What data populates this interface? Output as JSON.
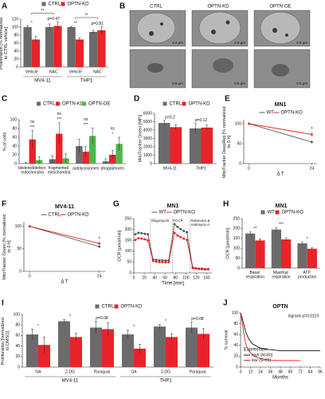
{
  "chart_data": [
    {
      "panel": "A",
      "type": "bar",
      "ylabel": "Proliferation [% normalized to CTRL vehicle]",
      "categories": [
        "Vehicle",
        "NAC",
        "Vehicle",
        "NAC"
      ],
      "groups": [
        "MV4-11",
        "THP1"
      ],
      "series": [
        {
          "name": "CTRL",
          "color": "#6b6b6b",
          "values": [
            100,
            100,
            100,
            88
          ],
          "errors": [
            3,
            8,
            2,
            4
          ]
        },
        {
          "name": "OPTN-KD",
          "color": "#e8242a",
          "values": [
            69,
            103,
            69,
            92
          ],
          "errors": [
            8,
            10,
            4,
            9
          ]
        }
      ],
      "ylim": [
        0,
        120
      ],
      "yticks": [
        0,
        20,
        40,
        60,
        80,
        100,
        120
      ],
      "sig": [
        "*",
        "p=0.47",
        "**",
        "p=0.81"
      ],
      "brackets": [
        {
          "label": "**",
          "from": 0,
          "to": 1
        },
        {
          "label": "**",
          "from": 2,
          "to": 3
        }
      ]
    },
    {
      "panel": "C",
      "type": "bar",
      "ylabel": "% of cells",
      "categories": [
        "blistered/defect mitochondria",
        "fragmented mitochondria",
        "autolysosomes",
        "phagophores"
      ],
      "series": [
        {
          "name": "CTRL",
          "color": "#6b6b6b",
          "values": [
            1,
            10,
            40,
            5
          ],
          "errors": [
            2,
            8,
            15,
            6
          ]
        },
        {
          "name": "OPTN-KD",
          "color": "#e8242a",
          "values": [
            55,
            68,
            27,
            20
          ],
          "errors": [
            20,
            25,
            12,
            10
          ]
        },
        {
          "name": "OPTN-OE",
          "color": "#4cb84c",
          "values": [
            8,
            12,
            63,
            45
          ],
          "errors": [
            8,
            10,
            18,
            15
          ]
        }
      ],
      "ylim": [
        0,
        100
      ],
      "yticks": [
        0,
        20,
        40,
        60,
        80,
        100
      ],
      "sig": [
        [
          "ns",
          "***"
        ],
        [
          "ns",
          "***"
        ],
        [
          "ns",
          "***"
        ],
        [
          "ns",
          "*"
        ]
      ]
    },
    {
      "panel": "D",
      "type": "bar",
      "ylabel": "MitoTracker Green [MFI]",
      "categories": [
        "MV4-11",
        "THP1"
      ],
      "series": [
        {
          "name": "CTRL",
          "color": "#6b6b6b",
          "values": [
            4850,
            4200
          ],
          "errors": [
            300,
            600
          ]
        },
        {
          "name": "OPTN-KD",
          "color": "#e8242a",
          "values": [
            4350,
            4300
          ],
          "errors": [
            300,
            300
          ]
        }
      ],
      "ylim": [
        0,
        6000
      ],
      "yticks": [
        0,
        1000,
        2000,
        3000,
        4000,
        5000,
        6000
      ],
      "sig": [
        "p=0.2",
        "p=0.12"
      ]
    },
    {
      "panel": "E",
      "type": "line",
      "title": "MN1",
      "ylabel": "MitoTracker DeepRed [% normalized to 0 h]",
      "xlabel": "Δ T",
      "x": [
        0,
        24
      ],
      "xlim": [
        -2,
        26
      ],
      "xticks": [
        0,
        24
      ],
      "ylim": [
        0,
        110
      ],
      "yticks": [
        0,
        50,
        100
      ],
      "series": [
        {
          "name": "WT",
          "color": "#555555",
          "values": [
            100,
            54
          ],
          "errors": [
            0,
            4
          ]
        },
        {
          "name": "OPTN-KO",
          "color": "#e8242a",
          "values": [
            100,
            73
          ],
          "errors": [
            0,
            5
          ]
        }
      ],
      "note": "*"
    },
    {
      "panel": "F",
      "type": "line",
      "title": "MV4-11",
      "ylabel": "MitoTracker Green [% normalized to 0 h]",
      "xlabel": "Δ T",
      "x": [
        0,
        24
      ],
      "xlim": [
        -2,
        26
      ],
      "xticks": [
        0,
        24
      ],
      "ylim": [
        0,
        110
      ],
      "yticks": [
        0,
        50,
        100
      ],
      "series": [
        {
          "name": "CTRL",
          "color": "#555555",
          "values": [
            100,
            55
          ],
          "errors": [
            0,
            3
          ]
        },
        {
          "name": "OPTN-KD",
          "color": "#e8242a",
          "values": [
            100,
            62
          ],
          "errors": [
            0,
            3
          ]
        }
      ],
      "note": "*"
    },
    {
      "panel": "G",
      "type": "line",
      "title": "MN1",
      "ylabel": "OCR [pmol/min]",
      "xlabel": "Time [min]",
      "x": [
        3,
        9,
        15,
        21,
        27,
        37,
        43,
        49,
        55,
        61,
        67,
        78,
        84,
        90,
        96,
        102,
        113,
        119,
        125,
        131,
        137,
        143
      ],
      "xlim": [
        0,
        150
      ],
      "xticks": [
        0,
        20,
        40,
        60,
        80,
        100,
        120,
        140
      ],
      "ylim": [
        0,
        250
      ],
      "yticks": [
        0,
        50,
        100,
        150,
        200,
        250
      ],
      "series": [
        {
          "name": "WT",
          "color": "#555555",
          "values": [
            178,
            185,
            183,
            180,
            178,
            62,
            60,
            58,
            58,
            57,
            57,
            225,
            212,
            202,
            193,
            188,
            25,
            22,
            20,
            20,
            18,
            18
          ]
        },
        {
          "name": "OPTN-KO",
          "color": "#e8242a",
          "values": [
            152,
            160,
            158,
            155,
            150,
            55,
            52,
            50,
            50,
            49,
            49,
            185,
            172,
            165,
            158,
            152,
            22,
            20,
            18,
            17,
            16,
            16
          ]
        }
      ],
      "events": [
        {
          "x": 32,
          "label": "Oligomycin"
        },
        {
          "x": 74,
          "label": "FCCP"
        },
        {
          "x": 108,
          "label": "Rotenone & Antimycin A"
        }
      ]
    },
    {
      "panel": "H",
      "type": "bar",
      "title": "MN1",
      "ylabel": "OCR [pmol/min]",
      "categories": [
        "Basal respiration",
        "Maximal respiration",
        "ATP production"
      ],
      "series": [
        {
          "name": "WT",
          "color": "#6b6b6b",
          "values": [
            175,
            195,
            125
          ],
          "errors": [
            8,
            10,
            5
          ]
        },
        {
          "name": "OPTN-KO",
          "color": "#e8242a",
          "values": [
            140,
            145,
            98
          ],
          "errors": [
            8,
            8,
            6
          ]
        }
      ],
      "ylim": [
        0,
        250
      ],
      "yticks": [
        0,
        50,
        100,
        150,
        200,
        250
      ],
      "sig": [
        "**",
        "***",
        "*"
      ]
    },
    {
      "panel": "I",
      "type": "bar",
      "ylabel": "Proliferation [normalized to DMSO]",
      "categories": [
        "OA",
        "2-DG",
        "Paraquat",
        "OA",
        "2-DG",
        "Paraquat"
      ],
      "groups": [
        "MV4-11",
        "THP1"
      ],
      "series": [
        {
          "name": "CTRL",
          "color": "#6b6b6b",
          "values": [
            62,
            87,
            75,
            62,
            77,
            75
          ],
          "errors": [
            10,
            3,
            12,
            8,
            4,
            10
          ]
        },
        {
          "name": "OPTN-KD",
          "color": "#e8242a",
          "values": [
            42,
            57,
            72,
            35,
            57,
            63
          ],
          "errors": [
            15,
            7,
            12,
            8,
            6,
            10
          ]
        }
      ],
      "ylim": [
        0,
        100
      ],
      "yticks": [
        0,
        20,
        40,
        60,
        80,
        100
      ],
      "sig": [
        "*",
        "*",
        "p=0.08",
        "*",
        "*",
        "p=0.08"
      ]
    },
    {
      "panel": "J",
      "type": "line",
      "title": "OPTN",
      "note": "logrank p=0.0119",
      "ylabel": "% survival",
      "xlabel": "Months",
      "x": [
        0,
        1,
        2,
        3,
        4,
        5,
        6,
        8,
        10,
        12,
        15,
        18,
        21,
        24,
        30,
        36,
        48,
        60,
        72,
        84,
        96
      ],
      "xlim": [
        0,
        96
      ],
      "xticks": [
        0,
        12,
        24,
        36,
        48,
        60,
        72,
        84,
        96
      ],
      "ylim": [
        0,
        100
      ],
      "yticks": [
        0,
        20,
        40,
        60,
        80,
        100
      ],
      "markers": false,
      "legend_title": "Expression",
      "series": [
        {
          "name": "high (N=80)",
          "color": "#111111",
          "values": [
            100,
            96,
            90,
            84,
            78,
            72,
            66,
            58,
            52,
            47,
            42,
            40,
            37,
            35,
            33,
            32,
            30,
            30,
            30,
            30,
            30
          ]
        },
        {
          "name": "low (N=81)",
          "color": "#e8242a",
          "values": [
            100,
            92,
            82,
            72,
            62,
            52,
            44,
            36,
            30,
            26,
            22,
            19,
            17,
            16,
            14,
            13,
            12,
            12,
            12,
            null,
            null
          ]
        }
      ]
    }
  ],
  "panel_b": {
    "panel": "B",
    "captions": [
      "CTRL",
      "OPTN-KD",
      "OPTN-OE"
    ],
    "scale_labels_top": [
      "2.0 µm",
      "2.0 µm",
      "2.0 µm"
    ],
    "scale_labels_bottom": [
      "0.5 µm",
      "0.5 µm",
      "0.5 µm"
    ]
  }
}
